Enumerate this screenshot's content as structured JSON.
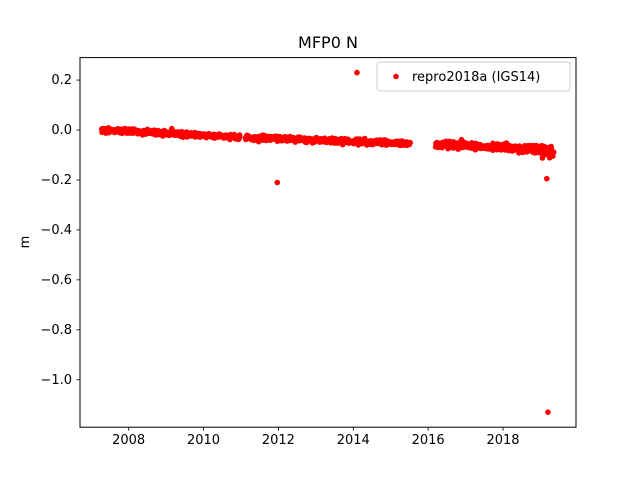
{
  "chart_data": {
    "type": "scatter",
    "title": "MFP0 N",
    "xlabel": "",
    "ylabel": "m",
    "xlim": [
      2006.7,
      2019.95
    ],
    "ylim": [
      -1.19,
      0.29
    ],
    "xticks": [
      2008,
      2010,
      2012,
      2014,
      2016,
      2018
    ],
    "yticks": [
      0.2,
      0.0,
      -0.2,
      -0.4,
      -0.6,
      -0.8,
      -1.0
    ],
    "grid": false,
    "marker_color": "#ff0000",
    "legend": {
      "label": "repro2018a (IGS14)",
      "position": "upper right"
    },
    "band_segments": [
      {
        "x_start": 2007.28,
        "x_end": 2010.97,
        "y_start": 0.0,
        "y_end": -0.028,
        "points": 380,
        "jitter": 0.005
      },
      {
        "x_start": 2011.12,
        "x_end": 2015.52,
        "y_start": -0.03,
        "y_end": -0.055,
        "points": 440,
        "jitter": 0.005
      },
      {
        "x_start": 2016.2,
        "x_end": 2019.3,
        "y_start": -0.058,
        "y_end": -0.078,
        "points": 330,
        "jitter": 0.007
      },
      {
        "x_start": 2018.85,
        "x_end": 2019.35,
        "y_start": -0.08,
        "y_end": -0.105,
        "points": 30,
        "jitter": 0.012
      }
    ],
    "outliers": [
      {
        "x": 2014.1,
        "y": 0.23
      },
      {
        "x": 2011.97,
        "y": -0.21
      },
      {
        "x": 2019.17,
        "y": -0.195
      },
      {
        "x": 2019.2,
        "y": -1.13
      }
    ]
  }
}
